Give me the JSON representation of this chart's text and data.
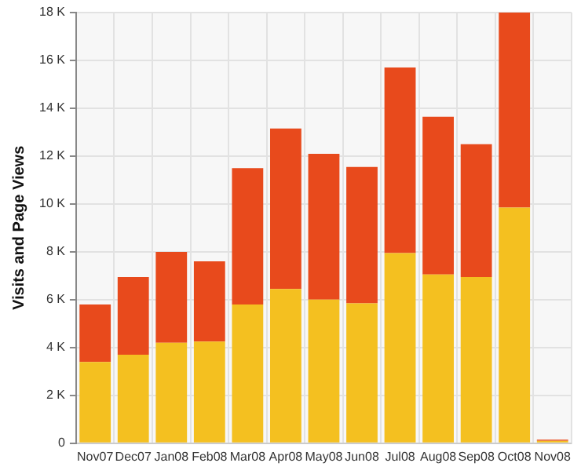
{
  "chart_data": {
    "type": "bar",
    "stacked": true,
    "ylabel": "Visits and Page Views",
    "categories": [
      "Nov07",
      "Dec07",
      "Jan08",
      "Feb08",
      "Mar08",
      "Apr08",
      "May08",
      "Jun08",
      "Jul08",
      "Aug08",
      "Sep08",
      "Oct08",
      "Nov08"
    ],
    "series": [
      {
        "color": "#f4c020",
        "values": [
          3.4,
          3.7,
          4.2,
          4.25,
          5.8,
          6.45,
          6.0,
          5.85,
          7.95,
          7.05,
          6.95,
          9.85,
          0.1
        ]
      },
      {
        "color": "#e84a1c",
        "values": [
          2.4,
          3.25,
          3.8,
          3.35,
          5.7,
          6.7,
          6.1,
          5.7,
          7.75,
          6.6,
          5.55,
          8.15,
          0.05
        ]
      }
    ],
    "ylim": [
      0,
      18
    ],
    "yticks": [
      0,
      {
        "value": 2,
        "label": "2 K"
      },
      {
        "value": 4,
        "label": "4 K"
      },
      {
        "value": 6,
        "label": "6 K"
      },
      {
        "value": 8,
        "label": "8 K"
      },
      {
        "value": 10,
        "label": "10 K"
      },
      {
        "value": 12,
        "label": "12 K"
      },
      {
        "value": 14,
        "label": "14 K"
      },
      {
        "value": 16,
        "label": "16 K"
      },
      {
        "value": 18,
        "label": "18 K"
      }
    ],
    "grid": true
  }
}
